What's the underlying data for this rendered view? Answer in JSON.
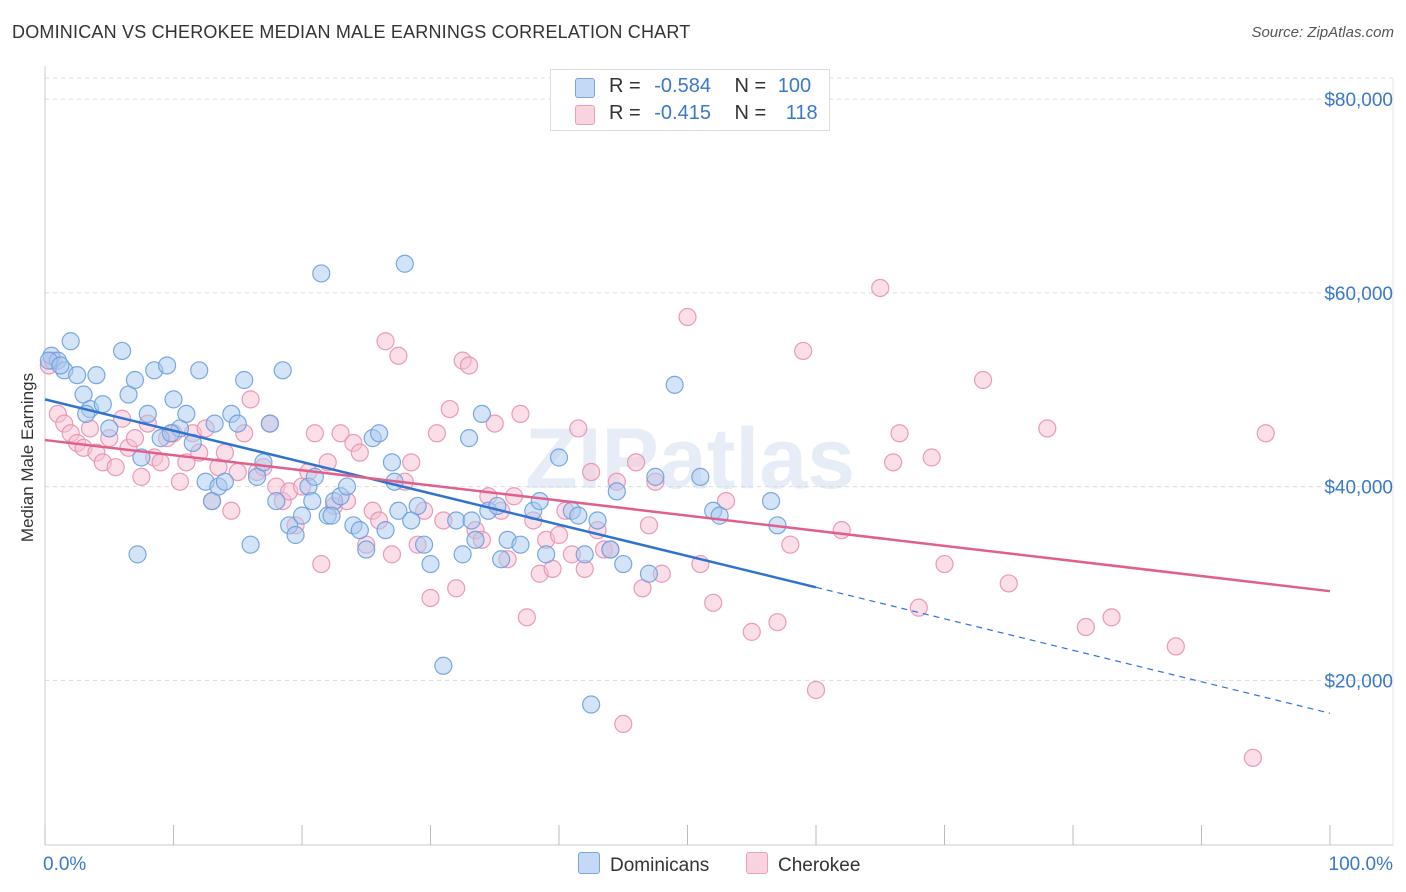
{
  "title": "DOMINICAN VS CHEROKEE MEDIAN MALE EARNINGS CORRELATION CHART",
  "source": "Source: ZipAtlas.com",
  "watermark": "ZIPatlas",
  "legend": {
    "r_label": "R =",
    "n_label": "N =",
    "rows": [
      {
        "name": "Dominicans",
        "r": "-0.584",
        "n": "100"
      },
      {
        "name": "Cherokee",
        "r": "-0.415",
        "n": "118"
      }
    ]
  },
  "colors": {
    "dominicans_fill": "#a9c9f0",
    "dominicans_stroke": "#6b9fdc",
    "dominicans_line": "#2f73cf",
    "cherokee_fill": "#f6bfd2",
    "cherokee_stroke": "#e990b1",
    "cherokee_line": "#e0608c",
    "axis_value": "#3a78c9"
  },
  "chart_data": {
    "type": "scatter",
    "title": "DOMINICAN VS CHEROKEE MEDIAN MALE EARNINGS CORRELATION CHART",
    "xlabel": "",
    "ylabel": "Median Male Earnings",
    "x_tick_labels": [
      "0.0%",
      "100.0%"
    ],
    "y_ticks": [
      20000,
      40000,
      60000,
      80000
    ],
    "y_tick_labels": [
      "$20,000",
      "$40,000",
      "$60,000",
      "$80,000"
    ],
    "xlim": [
      0,
      100
    ],
    "ylim": [
      3000,
      83000
    ],
    "grid": true,
    "series": [
      {
        "name": "Dominicans",
        "trend": {
          "x0": 0,
          "y0": 49000,
          "x1": 60,
          "y1": 29600,
          "dashed_to_x": 100,
          "dashed_to_y": 16600
        },
        "points": [
          [
            0.5,
            53500
          ],
          [
            1,
            53000
          ],
          [
            1.5,
            52000
          ],
          [
            2,
            55000
          ],
          [
            2.5,
            51500
          ],
          [
            3,
            49500
          ],
          [
            3.5,
            48000
          ],
          [
            4,
            51500
          ],
          [
            4.5,
            48500
          ],
          [
            5,
            46000
          ],
          [
            6,
            54000
          ],
          [
            6.5,
            49500
          ],
          [
            7,
            51000
          ],
          [
            7.5,
            43000
          ],
          [
            8,
            47500
          ],
          [
            8.5,
            52000
          ],
          [
            9,
            45000
          ],
          [
            9.5,
            52500
          ],
          [
            10,
            49000
          ],
          [
            10.5,
            46000
          ],
          [
            11,
            47500
          ],
          [
            11.5,
            44500
          ],
          [
            12,
            52000
          ],
          [
            12.5,
            40500
          ],
          [
            13,
            38500
          ],
          [
            13.5,
            40000
          ],
          [
            14,
            40500
          ],
          [
            14.5,
            47500
          ],
          [
            15,
            46500
          ],
          [
            15.5,
            51000
          ],
          [
            16,
            34000
          ],
          [
            16.5,
            41000
          ],
          [
            17,
            42500
          ],
          [
            17.5,
            46500
          ],
          [
            18,
            38500
          ],
          [
            18.5,
            52000
          ],
          [
            19,
            36000
          ],
          [
            19.5,
            35000
          ],
          [
            20,
            37000
          ],
          [
            20.5,
            40000
          ],
          [
            21,
            41000
          ],
          [
            21.5,
            62000
          ],
          [
            22,
            37000
          ],
          [
            22.5,
            38500
          ],
          [
            23,
            39000
          ],
          [
            23.5,
            40000
          ],
          [
            24,
            36000
          ],
          [
            24.5,
            35500
          ],
          [
            25,
            33500
          ],
          [
            25.5,
            45000
          ],
          [
            26,
            45500
          ],
          [
            26.5,
            35500
          ],
          [
            27,
            42500
          ],
          [
            27.5,
            37500
          ],
          [
            28,
            63000
          ],
          [
            28.5,
            36500
          ],
          [
            29,
            38000
          ],
          [
            29.5,
            34000
          ],
          [
            30,
            32000
          ],
          [
            31,
            21500
          ],
          [
            32,
            36500
          ],
          [
            32.5,
            33000
          ],
          [
            33,
            45000
          ],
          [
            33.5,
            34500
          ],
          [
            34,
            47500
          ],
          [
            34.5,
            37500
          ],
          [
            35.5,
            32500
          ],
          [
            36,
            34500
          ],
          [
            37,
            34000
          ],
          [
            38,
            37500
          ],
          [
            38.5,
            38500
          ],
          [
            39,
            33000
          ],
          [
            40,
            43000
          ],
          [
            41,
            37500
          ],
          [
            41.5,
            37000
          ],
          [
            42,
            33000
          ],
          [
            42.5,
            17500
          ],
          [
            43,
            36500
          ],
          [
            44,
            33500
          ],
          [
            44.5,
            39500
          ],
          [
            45,
            32000
          ],
          [
            47,
            31000
          ],
          [
            49,
            50500
          ],
          [
            51,
            41000
          ],
          [
            52,
            37500
          ],
          [
            52.5,
            37000
          ],
          [
            57,
            36000
          ],
          [
            0.3,
            53000
          ],
          [
            1.2,
            52500
          ],
          [
            3.2,
            47500
          ],
          [
            7.2,
            33000
          ],
          [
            9.8,
            45500
          ],
          [
            13.2,
            46500
          ],
          [
            20.8,
            38500
          ],
          [
            22.3,
            37000
          ],
          [
            27.2,
            40500
          ],
          [
            33.2,
            36500
          ],
          [
            35.2,
            38000
          ],
          [
            47.5,
            41000
          ],
          [
            56.5,
            38500
          ]
        ]
      },
      {
        "name": "Cherokee",
        "trend": {
          "x0": 0,
          "y0": 44800,
          "x1": 100,
          "y1": 29200
        },
        "points": [
          [
            0.3,
            52500
          ],
          [
            0.6,
            53000
          ],
          [
            1,
            47500
          ],
          [
            1.5,
            46500
          ],
          [
            2,
            45500
          ],
          [
            2.5,
            44500
          ],
          [
            3,
            44000
          ],
          [
            3.5,
            46000
          ],
          [
            4,
            43500
          ],
          [
            4.5,
            42500
          ],
          [
            5,
            45000
          ],
          [
            5.5,
            42000
          ],
          [
            6,
            47000
          ],
          [
            6.5,
            44000
          ],
          [
            7,
            45000
          ],
          [
            7.5,
            41000
          ],
          [
            8,
            46500
          ],
          [
            8.5,
            43000
          ],
          [
            9,
            42500
          ],
          [
            9.5,
            45000
          ],
          [
            10,
            45500
          ],
          [
            10.5,
            40500
          ],
          [
            11,
            42500
          ],
          [
            11.5,
            45500
          ],
          [
            12,
            43500
          ],
          [
            12.5,
            46000
          ],
          [
            13,
            38500
          ],
          [
            13.5,
            42000
          ],
          [
            14,
            43500
          ],
          [
            14.5,
            37500
          ],
          [
            15,
            41500
          ],
          [
            15.5,
            45500
          ],
          [
            16,
            49000
          ],
          [
            16.5,
            41500
          ],
          [
            17,
            42000
          ],
          [
            17.5,
            46500
          ],
          [
            18,
            40000
          ],
          [
            18.5,
            38500
          ],
          [
            19,
            39500
          ],
          [
            19.5,
            36000
          ],
          [
            20,
            40000
          ],
          [
            20.5,
            41500
          ],
          [
            21,
            45500
          ],
          [
            21.5,
            32000
          ],
          [
            22,
            42500
          ],
          [
            22.5,
            38000
          ],
          [
            23,
            45500
          ],
          [
            23.5,
            38500
          ],
          [
            24,
            44500
          ],
          [
            24.5,
            43500
          ],
          [
            25,
            34000
          ],
          [
            25.5,
            37500
          ],
          [
            26,
            36500
          ],
          [
            26.5,
            55000
          ],
          [
            27,
            33000
          ],
          [
            27.5,
            53500
          ],
          [
            28,
            40500
          ],
          [
            28.5,
            42500
          ],
          [
            29,
            34000
          ],
          [
            29.5,
            37500
          ],
          [
            30,
            28500
          ],
          [
            30.5,
            45500
          ],
          [
            31,
            36500
          ],
          [
            31.5,
            48000
          ],
          [
            32,
            29500
          ],
          [
            32.5,
            53000
          ],
          [
            33,
            52500
          ],
          [
            33.5,
            35500
          ],
          [
            34,
            34500
          ],
          [
            34.5,
            39000
          ],
          [
            35,
            46500
          ],
          [
            35.5,
            37500
          ],
          [
            36,
            32500
          ],
          [
            36.5,
            39000
          ],
          [
            37,
            47500
          ],
          [
            37.5,
            26500
          ],
          [
            38,
            36500
          ],
          [
            38.5,
            31000
          ],
          [
            39,
            34500
          ],
          [
            39.5,
            31500
          ],
          [
            40,
            35000
          ],
          [
            40.5,
            37500
          ],
          [
            41,
            33000
          ],
          [
            41.5,
            46000
          ],
          [
            42,
            31500
          ],
          [
            42.5,
            41500
          ],
          [
            43,
            35500
          ],
          [
            43.5,
            33500
          ],
          [
            44,
            33500
          ],
          [
            44.5,
            40500
          ],
          [
            45,
            15500
          ],
          [
            46,
            42500
          ],
          [
            46.5,
            29500
          ],
          [
            47,
            36000
          ],
          [
            47.5,
            40500
          ],
          [
            48,
            31000
          ],
          [
            50,
            57500
          ],
          [
            51,
            32000
          ],
          [
            52,
            28000
          ],
          [
            53,
            38500
          ],
          [
            55,
            25000
          ],
          [
            57,
            26000
          ],
          [
            58,
            34000
          ],
          [
            59,
            54000
          ],
          [
            60,
            19000
          ],
          [
            62,
            35500
          ],
          [
            65,
            60500
          ],
          [
            66,
            42500
          ],
          [
            66.5,
            45500
          ],
          [
            68,
            27500
          ],
          [
            69,
            43000
          ],
          [
            70,
            32000
          ],
          [
            73,
            51000
          ],
          [
            75,
            30000
          ],
          [
            78,
            46000
          ],
          [
            81,
            25500
          ],
          [
            83,
            26500
          ],
          [
            88,
            23500
          ],
          [
            94,
            12000
          ],
          [
            95,
            45500
          ]
        ]
      }
    ]
  }
}
